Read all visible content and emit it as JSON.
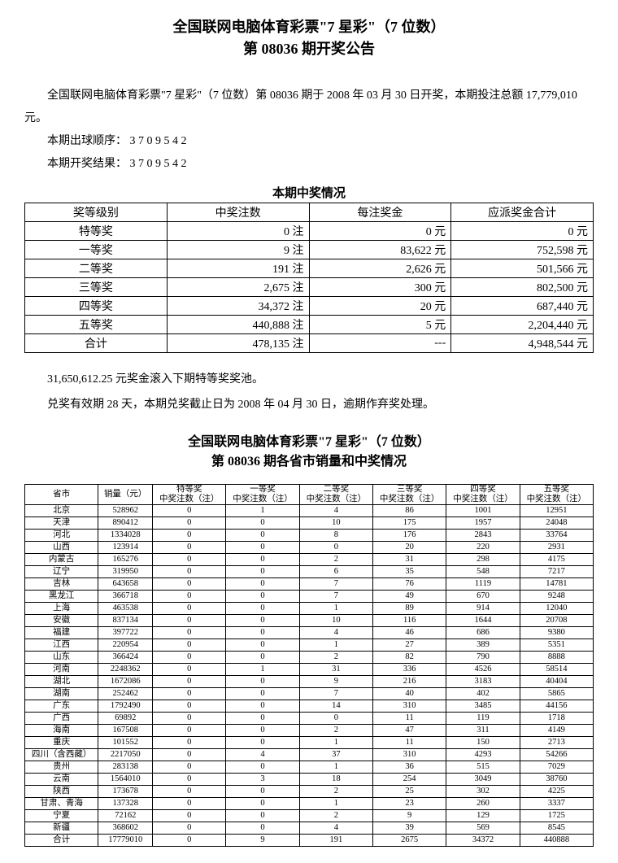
{
  "header": {
    "title_line1": "全国联网电脑体育彩票\"7 星彩\"（7 位数）",
    "title_line2": "第 08036 期开奖公告"
  },
  "intro": {
    "p1": "全国联网电脑体育彩票\"7 星彩\"（7 位数）第 08036 期于 2008 年 03 月 30 日开奖，本期投注总额 17,779,010 元。",
    "p2": "本期出球顺序：  3 7 0 9 5 4 2",
    "p3": "本期开奖结果：  3 7 0 9 5 4 2"
  },
  "prize_table": {
    "header": "本期中奖情况",
    "columns": [
      "奖等级别",
      "中奖注数",
      "每注奖金",
      "应派奖金合计"
    ],
    "unit_bets": "注",
    "unit_money": "元",
    "rows": [
      {
        "level": "特等奖",
        "bets": "0",
        "per": "0",
        "total": "0"
      },
      {
        "level": "一等奖",
        "bets": "9",
        "per": "83,622",
        "total": "752,598"
      },
      {
        "level": "二等奖",
        "bets": "191",
        "per": "2,626",
        "total": "501,566"
      },
      {
        "level": "三等奖",
        "bets": "2,675",
        "per": "300",
        "total": "802,500"
      },
      {
        "level": "四等奖",
        "bets": "34,372",
        "per": "20",
        "total": "687,440"
      },
      {
        "level": "五等奖",
        "bets": "440,888",
        "per": "5",
        "total": "2,204,440"
      },
      {
        "level": "合计",
        "bets": "478,135",
        "per": "---",
        "total": "4,948,544"
      }
    ]
  },
  "after": {
    "p1": "31,650,612.25 元奖金滚入下期特等奖奖池。",
    "p2": "兑奖有效期 28 天，本期兑奖截止日为 2008 年 04 月 30 日，逾期作弃奖处理。"
  },
  "header2": {
    "title_line1": "全国联网电脑体育彩票\"7 星彩\"（7 位数）",
    "title_line2": "第 08036 期各省市销量和中奖情况"
  },
  "prov_table": {
    "columns": [
      "省市",
      "销量（元）",
      "特等奖\n中奖注数（注）",
      "一等奖\n中奖注数（注）",
      "二等奖\n中奖注数（注）",
      "三等奖\n中奖注数（注）",
      "四等奖\n中奖注数（注）",
      "五等奖\n中奖注数（注）"
    ],
    "col_sub_top": [
      "特等奖",
      "一等奖",
      "二等奖",
      "三等奖",
      "四等奖",
      "五等奖"
    ],
    "col_sub_bottom": "中奖注数（注）",
    "col0": "省市",
    "col1": "销量（元）",
    "rows": [
      [
        "北京",
        "528962",
        "0",
        "1",
        "4",
        "86",
        "1001",
        "12951"
      ],
      [
        "天津",
        "890412",
        "0",
        "0",
        "10",
        "175",
        "1957",
        "24048"
      ],
      [
        "河北",
        "1334028",
        "0",
        "0",
        "8",
        "176",
        "2843",
        "33764"
      ],
      [
        "山西",
        "123914",
        "0",
        "0",
        "0",
        "20",
        "220",
        "2931"
      ],
      [
        "内蒙古",
        "165276",
        "0",
        "0",
        "2",
        "31",
        "298",
        "4175"
      ],
      [
        "辽宁",
        "319950",
        "0",
        "0",
        "6",
        "35",
        "548",
        "7217"
      ],
      [
        "吉林",
        "643658",
        "0",
        "0",
        "7",
        "76",
        "1119",
        "14781"
      ],
      [
        "黑龙江",
        "366718",
        "0",
        "0",
        "7",
        "49",
        "670",
        "9248"
      ],
      [
        "上海",
        "463538",
        "0",
        "0",
        "1",
        "89",
        "914",
        "12040"
      ],
      [
        "安徽",
        "837134",
        "0",
        "0",
        "10",
        "116",
        "1644",
        "20708"
      ],
      [
        "福建",
        "397722",
        "0",
        "0",
        "4",
        "46",
        "686",
        "9380"
      ],
      [
        "江西",
        "220954",
        "0",
        "0",
        "1",
        "27",
        "389",
        "5351"
      ],
      [
        "山东",
        "366424",
        "0",
        "0",
        "2",
        "82",
        "790",
        "8888"
      ],
      [
        "河南",
        "2248362",
        "0",
        "1",
        "31",
        "336",
        "4526",
        "58514"
      ],
      [
        "湖北",
        "1672086",
        "0",
        "0",
        "9",
        "216",
        "3183",
        "40404"
      ],
      [
        "湖南",
        "252462",
        "0",
        "0",
        "7",
        "40",
        "402",
        "5865"
      ],
      [
        "广东",
        "1792490",
        "0",
        "0",
        "14",
        "310",
        "3485",
        "44156"
      ],
      [
        "广西",
        "69892",
        "0",
        "0",
        "0",
        "11",
        "119",
        "1718"
      ],
      [
        "海南",
        "167508",
        "0",
        "0",
        "2",
        "47",
        "311",
        "4149"
      ],
      [
        "重庆",
        "101552",
        "0",
        "0",
        "1",
        "11",
        "150",
        "2713"
      ],
      [
        "四川（含西藏）",
        "2217050",
        "0",
        "4",
        "37",
        "310",
        "4293",
        "54266"
      ],
      [
        "贵州",
        "283138",
        "0",
        "0",
        "1",
        "36",
        "515",
        "7029"
      ],
      [
        "云南",
        "1564010",
        "0",
        "3",
        "18",
        "254",
        "3049",
        "38760"
      ],
      [
        "陕西",
        "173678",
        "0",
        "0",
        "2",
        "25",
        "302",
        "4225"
      ],
      [
        "甘肃、青海",
        "137328",
        "0",
        "0",
        "1",
        "23",
        "260",
        "3337"
      ],
      [
        "宁夏",
        "72162",
        "0",
        "0",
        "2",
        "9",
        "129",
        "1725"
      ],
      [
        "新疆",
        "368602",
        "0",
        "0",
        "4",
        "39",
        "569",
        "8545"
      ],
      [
        "合计",
        "17779010",
        "0",
        "9",
        "191",
        "2675",
        "34372",
        "440888"
      ]
    ]
  },
  "style": {
    "background_color": "#ffffff",
    "text_color": "#000000",
    "border_color": "#000000",
    "title_fontsize": 18,
    "body_fontsize": 14,
    "prov_fontsize": 10.5
  }
}
